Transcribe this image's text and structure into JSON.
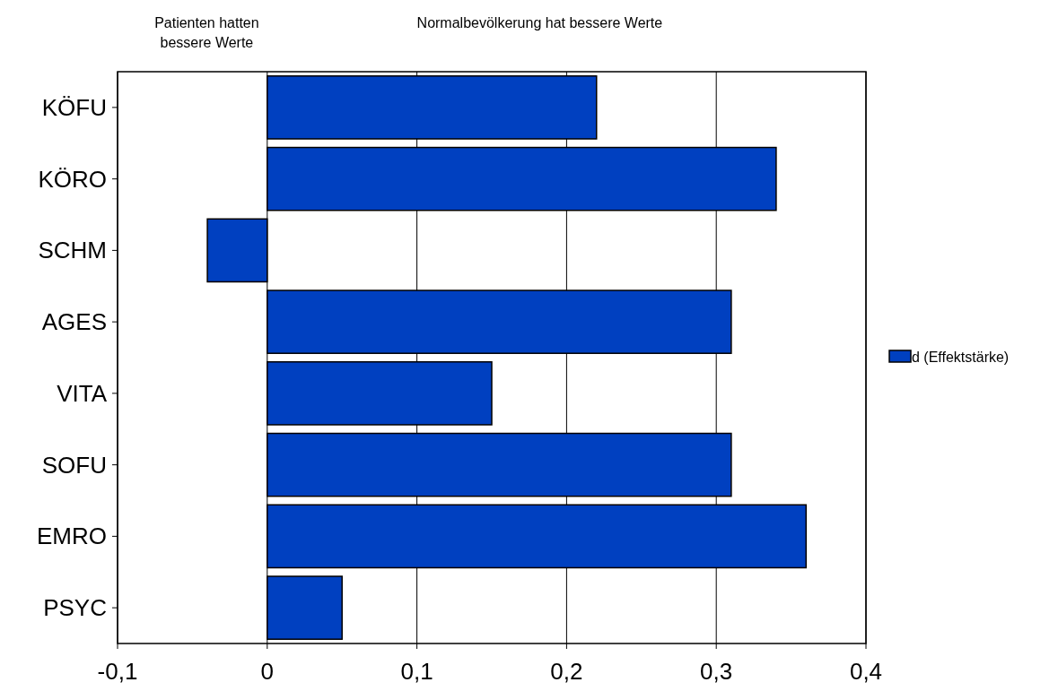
{
  "chart_data": {
    "type": "bar",
    "orientation": "horizontal",
    "categories": [
      "KÖFU",
      "KÖRO",
      "SCHM",
      "AGES",
      "VITA",
      "SOFU",
      "EMRO",
      "PSYC"
    ],
    "series": [
      {
        "name": "d (Effektstärke)",
        "color": "#0040c0",
        "values": [
          0.22,
          0.34,
          -0.04,
          0.31,
          0.15,
          0.31,
          0.36,
          0.05
        ]
      }
    ],
    "xlim": [
      -0.1,
      0.4
    ],
    "xticks": [
      {
        "value": -0.1,
        "label": "-0,1"
      },
      {
        "value": 0,
        "label": "0"
      },
      {
        "value": 0.1,
        "label": "0,1"
      },
      {
        "value": 0.2,
        "label": "0,2"
      },
      {
        "value": 0.3,
        "label": "0,3"
      },
      {
        "value": 0.4,
        "label": "0,4"
      }
    ],
    "grid": "x",
    "legend": "right",
    "annotations": [
      "Patienten hatten bessere Werte",
      "Normalbevölkerung hat bessere Werte"
    ]
  }
}
